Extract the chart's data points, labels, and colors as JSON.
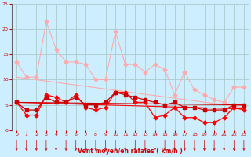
{
  "bg_color": "#cceeff",
  "grid_color": "#aacccc",
  "xlabel": "Vent moyen/en rafales ( km/h )",
  "xlabel_color": "#cc0000",
  "tick_color": "#cc0000",
  "arrow_color": "#cc0000",
  "xlim": [
    -0.5,
    23.5
  ],
  "ylim": [
    0,
    25
  ],
  "yticks": [
    0,
    5,
    10,
    15,
    20,
    25
  ],
  "xticks": [
    0,
    1,
    2,
    3,
    4,
    5,
    6,
    7,
    8,
    9,
    10,
    11,
    12,
    13,
    14,
    15,
    16,
    17,
    18,
    19,
    20,
    21,
    22,
    23
  ],
  "pink_jagged_x": [
    0,
    1,
    2,
    3,
    4,
    5,
    6,
    7,
    8,
    9,
    10,
    11,
    12,
    13,
    14,
    15,
    16,
    17,
    18,
    19,
    20,
    21,
    22,
    23
  ],
  "pink_jagged_y": [
    13.5,
    10.5,
    10.5,
    21.5,
    16,
    13.5,
    13.5,
    13,
    10,
    10,
    19.5,
    13,
    13,
    11.5,
    13,
    12,
    7,
    11.5,
    8,
    7,
    6,
    5.5,
    8.5,
    8.5
  ],
  "pink_jagged_color": "#ffaaaa",
  "pink_trend_x": [
    0,
    23
  ],
  "pink_trend_y": [
    10.5,
    4.5
  ],
  "pink_trend_color": "#ffaaaa",
  "red_jagged1_x": [
    0,
    1,
    2,
    3,
    4,
    5,
    6,
    7,
    8,
    9,
    10,
    11,
    12,
    13,
    14,
    15,
    16,
    17,
    18,
    19,
    20,
    21,
    22,
    23
  ],
  "red_jagged1_y": [
    5.5,
    3.0,
    3.0,
    7.0,
    6.5,
    5.5,
    7.0,
    4.5,
    4.0,
    4.5,
    7.5,
    7.5,
    5.5,
    5.5,
    2.5,
    3.0,
    4.5,
    2.5,
    2.5,
    1.5,
    1.5,
    2.5,
    4.5,
    4.0
  ],
  "red_jagged1_color": "#ff0000",
  "red_jagged2_x": [
    0,
    1,
    2,
    3,
    4,
    5,
    6,
    7,
    8,
    9,
    10,
    11,
    12,
    13,
    14,
    15,
    16,
    17,
    18,
    19,
    20,
    21,
    22,
    23
  ],
  "red_jagged2_y": [
    5.5,
    4.0,
    4.0,
    6.5,
    5.5,
    5.5,
    6.5,
    5.0,
    5.0,
    5.5,
    7.5,
    7.0,
    6.5,
    6.0,
    5.5,
    5.0,
    5.5,
    4.5,
    4.5,
    4.0,
    4.0,
    4.0,
    5.0,
    5.0
  ],
  "red_jagged2_color": "#cc0000",
  "red_trend1_x": [
    0,
    23
  ],
  "red_trend1_y": [
    5.5,
    4.2
  ],
  "red_trend1_color": "#ff0000",
  "red_trend2_x": [
    0,
    23
  ],
  "red_trend2_y": [
    5.5,
    5.0
  ],
  "red_trend2_color": "#cc0000"
}
